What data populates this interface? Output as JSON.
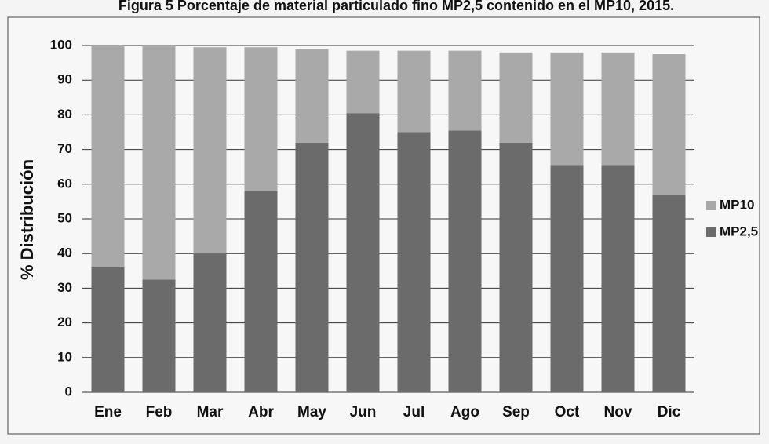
{
  "chart_data": {
    "type": "stacked_bar",
    "title": "Figura 5 Porcentaje de material particulado fino MP2,5 contenido en el MP10, 2015.",
    "ylabel": "% Distribución",
    "categories": [
      "Ene",
      "Feb",
      "Mar",
      "Abr",
      "May",
      "Jun",
      "Jul",
      "Ago",
      "Sep",
      "Oct",
      "Nov",
      "Dic"
    ],
    "series": [
      {
        "name": "MP2,5",
        "color": "#6b6b6b",
        "values": [
          36,
          32.5,
          40,
          58,
          72,
          80.5,
          75,
          75.5,
          72,
          65.5,
          65.5,
          57
        ]
      },
      {
        "name": "MP10",
        "color": "#a9a9a9",
        "values": [
          64,
          67.5,
          59.5,
          41.5,
          27,
          18,
          23.5,
          23,
          26,
          32.5,
          32.5,
          40.5
        ]
      }
    ],
    "ylim": [
      0,
      100
    ],
    "yticks": [
      0,
      10,
      20,
      30,
      40,
      50,
      60,
      70,
      80,
      90,
      100
    ],
    "grid": true,
    "legend": "right"
  }
}
